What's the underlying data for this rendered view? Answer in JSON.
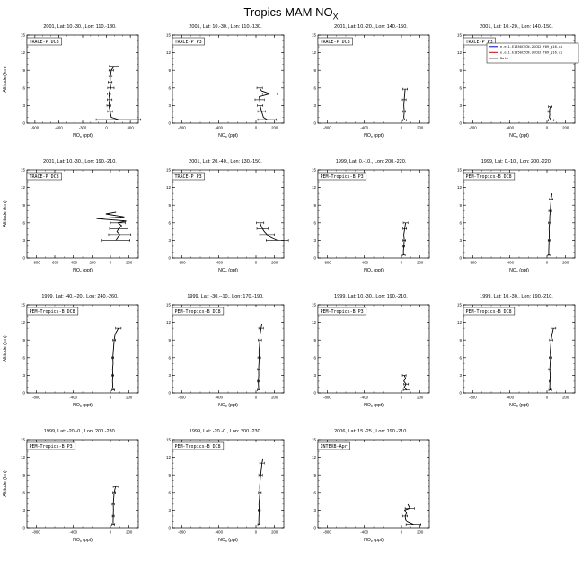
{
  "chart": {
    "title": {
      "pre": "Tropics MAM NO",
      "sub": "X"
    },
    "xlabel": {
      "pre": "NO",
      "sub": "x",
      "post": " (ppt)"
    },
    "ylabel": "Altitude (km)",
    "ylim": [
      0,
      15
    ],
    "yticks": [
      0,
      3,
      6,
      9,
      12,
      15
    ],
    "legend": {
      "entries": [
        {
          "color": "#0000cc",
          "label": "e.e11.E1850C5CN.2XCO2.f09_g16.ci"
        },
        {
          "color": "#cc0000",
          "label": "e.e11.E1850C5CN.2XCO2.f09_g16.ci"
        },
        {
          "color": "#000000",
          "label": "Data"
        }
      ]
    },
    "chart_data": {
      "type": "line",
      "note": "vertical profiles of NOx (ppt) vs altitude (km); values below are [altitude_km, NOx_ppt, std_dev_ppt]"
    },
    "panels": [
      {
        "header": "2001, Lat: 10.-30., Lon: 110.-130.",
        "label": "TRACE-P DC8",
        "show_ylabel": true,
        "legend": false,
        "xlim": [
          -1000,
          400
        ],
        "xticks": [
          -900,
          -600,
          -300,
          0,
          300
        ],
        "profile": [
          [
            0.6,
            150,
            280
          ],
          [
            1,
            60,
            0
          ],
          [
            2,
            45,
            30
          ],
          [
            3,
            30,
            25
          ],
          [
            4,
            40,
            30
          ],
          [
            5,
            30,
            20
          ],
          [
            6,
            55,
            40
          ],
          [
            7,
            45,
            25
          ],
          [
            8,
            50,
            20
          ],
          [
            9,
            60,
            30
          ],
          [
            9.7,
            95,
            60
          ]
        ]
      },
      {
        "header": "2001, Lat: 10.-30., Lon: 110.-130.",
        "label": "TRACE-P P3",
        "show_ylabel": false,
        "legend": false,
        "xlim": [
          -900,
          300
        ],
        "xticks": [
          -800,
          -400,
          0,
          200
        ],
        "profile": [
          [
            0.6,
            120,
            100
          ],
          [
            1,
            80,
            0
          ],
          [
            2,
            60,
            40
          ],
          [
            3,
            45,
            30
          ],
          [
            4,
            40,
            50
          ],
          [
            4.5,
            35,
            0
          ],
          [
            5,
            150,
            80
          ],
          [
            5.5,
            60,
            0
          ],
          [
            6,
            40,
            30
          ]
        ]
      },
      {
        "header": "2001, Lat: 10.-20., Lon: 140.-150.",
        "label": "TRACE-P DC8",
        "show_ylabel": false,
        "legend": false,
        "xlim": [
          -900,
          300
        ],
        "xticks": [
          -800,
          -400,
          0,
          200
        ],
        "profile": [
          [
            0.5,
            35,
            20
          ],
          [
            1,
            25,
            0
          ],
          [
            2,
            30,
            15
          ],
          [
            3,
            25,
            0
          ],
          [
            4,
            30,
            20
          ],
          [
            5,
            35,
            0
          ],
          [
            5.8,
            40,
            25
          ]
        ]
      },
      {
        "header": "2001, Lat: 10.-20., Lon: 140.-150.",
        "label": "TRACE-P P3",
        "show_ylabel": false,
        "legend": true,
        "xlim": [
          -900,
          300
        ],
        "xticks": [
          -800,
          -400,
          0,
          200
        ],
        "profile": [
          [
            0.5,
            45,
            30
          ],
          [
            1,
            25,
            0
          ],
          [
            1.5,
            30,
            0
          ],
          [
            2,
            25,
            15
          ],
          [
            2.8,
            35,
            20
          ]
        ]
      },
      {
        "header": "2001, Lat: 10.-30., Lon: 190.-210.",
        "label": "TRACE-P DC8",
        "show_ylabel": true,
        "legend": false,
        "xlim": [
          -900,
          300
        ],
        "xticks": [
          -800,
          -600,
          -400,
          -200,
          0,
          200
        ],
        "profile": [
          [
            3,
            60,
            150
          ],
          [
            3.5,
            80,
            0
          ],
          [
            4,
            100,
            120
          ],
          [
            4.5,
            70,
            0
          ],
          [
            5,
            90,
            100
          ],
          [
            5.5,
            120,
            0
          ],
          [
            6,
            80,
            80
          ],
          [
            6.3,
            170,
            0
          ],
          [
            6.7,
            -150,
            0
          ],
          [
            7,
            150,
            0
          ],
          [
            7.5,
            -50,
            0
          ],
          [
            7.8,
            60,
            0
          ]
        ]
      },
      {
        "header": "2001, Lat: 20.-40., Lon: 130.-150.",
        "label": "TRACE-P P3",
        "show_ylabel": false,
        "legend": false,
        "xlim": [
          -900,
          300
        ],
        "xticks": [
          -800,
          -400,
          0,
          200
        ],
        "profile": [
          [
            3,
            230,
            120
          ],
          [
            3.5,
            160,
            0
          ],
          [
            4,
            120,
            80
          ],
          [
            4.5,
            90,
            0
          ],
          [
            5,
            70,
            60
          ],
          [
            5.5,
            55,
            0
          ],
          [
            6,
            45,
            40
          ]
        ]
      },
      {
        "header": "1999, Lat: 0.-10., Lon: 200.-220.",
        "label": "PEM-Tropics-B P3",
        "show_ylabel": false,
        "legend": false,
        "xlim": [
          -900,
          300
        ],
        "xticks": [
          -800,
          -400,
          0,
          200
        ],
        "profile": [
          [
            0.5,
            25,
            15
          ],
          [
            1,
            20,
            0
          ],
          [
            2,
            25,
            10
          ],
          [
            3,
            30,
            15
          ],
          [
            4,
            25,
            0
          ],
          [
            5,
            35,
            20
          ],
          [
            6,
            45,
            25
          ]
        ]
      },
      {
        "header": "1999, Lat: 0.-10., Lon: 200.-220.",
        "label": "PEM-Tropics-B DC8",
        "show_ylabel": false,
        "legend": false,
        "xlim": [
          -900,
          300
        ],
        "xticks": [
          -800,
          -400,
          0,
          200
        ],
        "profile": [
          [
            0.5,
            20,
            10
          ],
          [
            1,
            18,
            0
          ],
          [
            2,
            20,
            0
          ],
          [
            3,
            22,
            10
          ],
          [
            4,
            25,
            0
          ],
          [
            5,
            22,
            0
          ],
          [
            6,
            28,
            12
          ],
          [
            7,
            30,
            0
          ],
          [
            8,
            35,
            15
          ],
          [
            9,
            40,
            0
          ],
          [
            10,
            45,
            20
          ],
          [
            11,
            55,
            0
          ]
        ]
      },
      {
        "header": "1999, Lat: -40.--20., Lon: 240.-260.",
        "label": "PEM-Tropics-B DC8",
        "show_ylabel": true,
        "legend": false,
        "xlim": [
          -900,
          300
        ],
        "xticks": [
          -800,
          -400,
          0,
          200
        ],
        "profile": [
          [
            0.5,
            30,
            15
          ],
          [
            1,
            25,
            0
          ],
          [
            2,
            22,
            0
          ],
          [
            3,
            25,
            10
          ],
          [
            4,
            22,
            0
          ],
          [
            5,
            28,
            0
          ],
          [
            6,
            25,
            10
          ],
          [
            7,
            30,
            0
          ],
          [
            8,
            35,
            0
          ],
          [
            9,
            40,
            15
          ],
          [
            10,
            50,
            0
          ],
          [
            11,
            85,
            30
          ]
        ]
      },
      {
        "header": "1999, Lat: -30.--10., Lon: 170.-190.",
        "label": "PEM-Tropics-B DC8",
        "show_ylabel": false,
        "legend": false,
        "xlim": [
          -900,
          300
        ],
        "xticks": [
          -800,
          -400,
          0,
          200
        ],
        "profile": [
          [
            0.5,
            30,
            15
          ],
          [
            1,
            28,
            0
          ],
          [
            2,
            25,
            10
          ],
          [
            3,
            30,
            0
          ],
          [
            4,
            28,
            12
          ],
          [
            5,
            32,
            0
          ],
          [
            6,
            35,
            15
          ],
          [
            7,
            32,
            0
          ],
          [
            8,
            38,
            0
          ],
          [
            9,
            42,
            18
          ],
          [
            10,
            45,
            0
          ],
          [
            11,
            55,
            25
          ],
          [
            11.8,
            65,
            0
          ]
        ]
      },
      {
        "header": "1999, Lat: 10.-30., Lon: 190.-210.",
        "label": "PEM-Tropics-B P3",
        "show_ylabel": false,
        "legend": false,
        "xlim": [
          -900,
          300
        ],
        "xticks": [
          -800,
          -400,
          0,
          200
        ],
        "profile": [
          [
            0.5,
            55,
            35
          ],
          [
            1,
            30,
            0
          ],
          [
            1.5,
            50,
            25
          ],
          [
            2,
            25,
            0
          ],
          [
            2.5,
            45,
            0
          ],
          [
            3,
            30,
            20
          ]
        ]
      },
      {
        "header": "1999, Lat: 10.-30., Lon: 190.-210.",
        "label": "PEM-Tropics-B DC8",
        "show_ylabel": false,
        "legend": false,
        "xlim": [
          -900,
          300
        ],
        "xticks": [
          -800,
          -400,
          0,
          200
        ],
        "profile": [
          [
            0.5,
            35,
            15
          ],
          [
            1,
            30,
            0
          ],
          [
            2,
            32,
            10
          ],
          [
            3,
            35,
            0
          ],
          [
            4,
            30,
            12
          ],
          [
            5,
            35,
            0
          ],
          [
            6,
            38,
            15
          ],
          [
            7,
            35,
            0
          ],
          [
            8,
            40,
            0
          ],
          [
            9,
            45,
            18
          ],
          [
            10,
            55,
            0
          ],
          [
            11,
            70,
            25
          ]
        ]
      },
      {
        "header": "1999, Lat: -20.-0., Lon: 200.-230.",
        "label": "PEM-Tropics-B P3",
        "show_ylabel": true,
        "legend": false,
        "xlim": [
          -900,
          300
        ],
        "xticks": [
          -800,
          -400,
          0,
          200
        ],
        "profile": [
          [
            0.5,
            30,
            15
          ],
          [
            1,
            28,
            0
          ],
          [
            2,
            30,
            10
          ],
          [
            3,
            32,
            0
          ],
          [
            4,
            30,
            12
          ],
          [
            5,
            35,
            0
          ],
          [
            6,
            40,
            15
          ],
          [
            7,
            55,
            25
          ]
        ]
      },
      {
        "header": "1999, Lat: -20.-0., Lon: 200.-230.",
        "label": "PEM-Tropics-B DC8",
        "show_ylabel": false,
        "legend": false,
        "xlim": [
          -900,
          300
        ],
        "xticks": [
          -800,
          -400,
          0,
          200
        ],
        "profile": [
          [
            0.5,
            32,
            12
          ],
          [
            1,
            30,
            0
          ],
          [
            2,
            32,
            0
          ],
          [
            3,
            35,
            12
          ],
          [
            4,
            32,
            0
          ],
          [
            5,
            38,
            0
          ],
          [
            6,
            42,
            15
          ],
          [
            7,
            40,
            0
          ],
          [
            8,
            45,
            0
          ],
          [
            9,
            50,
            20
          ],
          [
            10,
            58,
            0
          ],
          [
            11,
            65,
            25
          ],
          [
            11.8,
            75,
            0
          ]
        ]
      },
      {
        "header": "2006, Lat: 15.-25., Lon: 190.-210.",
        "label": "INTEXB-Apr",
        "show_ylabel": false,
        "legend": false,
        "xlim": [
          -900,
          300
        ],
        "xticks": [
          -800,
          -400,
          0,
          200
        ],
        "profile": [
          [
            0.5,
            130,
            80
          ],
          [
            1,
            60,
            0
          ],
          [
            1.5,
            45,
            0
          ],
          [
            2,
            40,
            25
          ],
          [
            2.5,
            55,
            0
          ],
          [
            3,
            35,
            0
          ],
          [
            3.3,
            90,
            50
          ],
          [
            4,
            70,
            0
          ]
        ]
      }
    ]
  }
}
